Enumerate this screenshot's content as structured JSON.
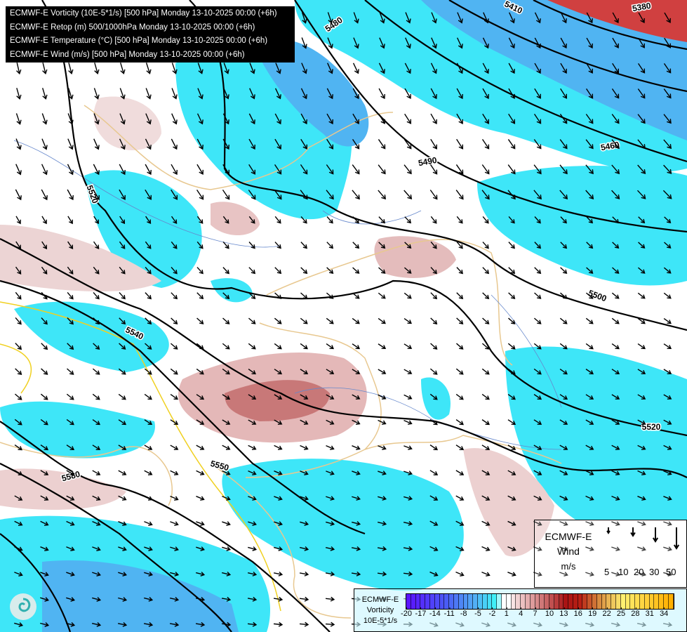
{
  "title_lines": [
    "ECMWF-E Vorticity (10E-5*1/s) [500 hPa] Monday 13-10-2025 00:00 (+6h)",
    "ECMWF-E Retop (m) 500/1000hPa Monday 13-10-2025 00:00 (+6h)",
    "ECMWF-E Temperature (°C) [500 hPa] Monday 13-10-2025 00:00 (+6h)",
    "ECMWF-E Wind (m/s) [500 hPa] Monday 13-10-2025 00:00 (+6h)"
  ],
  "contour_labels": [
    "5380",
    "5410",
    "5480",
    "5460",
    "5490",
    "5520",
    "5500",
    "5540",
    "5520",
    "5550",
    "5580"
  ],
  "wind_legend": {
    "model": "ECMWF-E",
    "title": "Wind",
    "unit": "m/s",
    "speeds": [
      "5",
      "10",
      "20",
      "30",
      "50"
    ]
  },
  "colorbar": {
    "model": "ECMWF-E",
    "title": "Vorticity",
    "unit": "10E-5*1/s",
    "min": -20,
    "max": 35,
    "ticks": [
      "-20",
      "-17",
      "-14",
      "-11",
      "-8",
      "-5",
      "-2",
      "1",
      "4",
      "7",
      "10",
      "13",
      "16",
      "19",
      "22",
      "25",
      "28",
      "31",
      "34"
    ],
    "stops": [
      [
        "-20",
        "#5a14ff"
      ],
      [
        "-12",
        "#4a5cf5"
      ],
      [
        "-6",
        "#52b0f5"
      ],
      [
        "-2",
        "#40f0f8"
      ],
      [
        "0",
        "#ffffff"
      ],
      [
        "2",
        "#f8e4e4"
      ],
      [
        "8",
        "#d07878"
      ],
      [
        "13",
        "#aa1414"
      ],
      [
        "16",
        "#b82014"
      ],
      [
        "20",
        "#d88c40"
      ],
      [
        "25",
        "#fff070"
      ],
      [
        "35",
        "#ffb000"
      ]
    ]
  },
  "colors": {
    "cyan": "#3ee6f8",
    "blue": "#50b4f2",
    "pink": "#e8c4c4",
    "darkpink": "#c87878",
    "contour": "#000000",
    "border": "#e8c890",
    "river": "#6688cc"
  }
}
